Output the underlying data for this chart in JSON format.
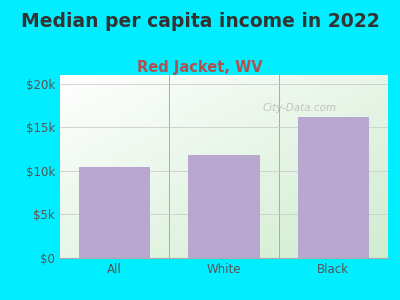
{
  "title": "Median per capita income in 2022",
  "subtitle": "Red Jacket, WV",
  "categories": [
    "All",
    "White",
    "Black"
  ],
  "values": [
    10500,
    11800,
    16200
  ],
  "bar_color": "#b8a8d0",
  "title_color": "#333333",
  "subtitle_color": "#b05050",
  "background_color": "#00eeff",
  "ylim": [
    0,
    21000
  ],
  "yticks": [
    0,
    5000,
    10000,
    15000,
    20000
  ],
  "ytick_labels": [
    "$0",
    "$5k",
    "$10k",
    "$15k",
    "$20k"
  ],
  "axis_color": "#555555",
  "watermark": "City-Data.com",
  "title_fontsize": 13.5,
  "subtitle_fontsize": 10.5,
  "tick_fontsize": 8.5,
  "grid_color": "#cccccc",
  "divider_color": "#aaaaaa",
  "grad_top": "#ffffff",
  "grad_bottom": "#d0ecd0"
}
